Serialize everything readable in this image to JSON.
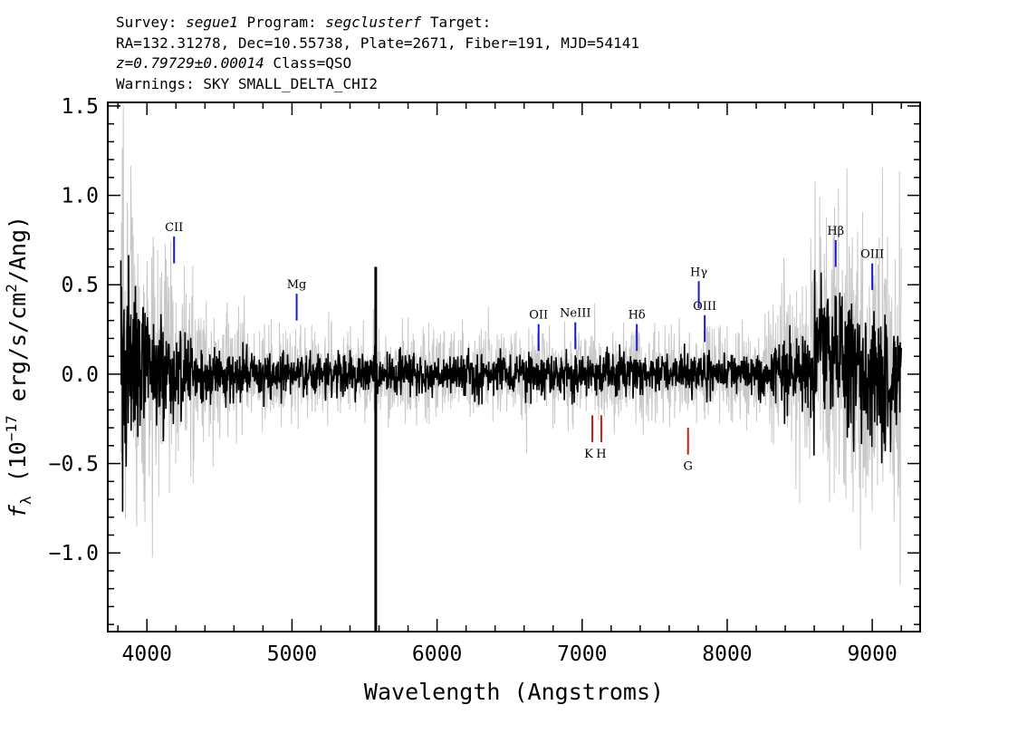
{
  "header": {
    "survey_label": "Survey:",
    "survey": "segue1",
    "program_label": "Program:",
    "program": "segclusterf",
    "target_label": "Target:",
    "line2": "RA=132.31278, Dec=10.55738, Plate=2671, Fiber=191, MJD=54141",
    "redshift": "z=0.79729±0.00014",
    "class_text": "Class=QSO",
    "warnings": "Warnings: SKY SMALL_DELTA_CHI2"
  },
  "chart_data": {
    "type": "line",
    "title": "",
    "xlabel": "Wavelength (Angstroms)",
    "ylabel": "f_λ (10^-17 erg/s/cm^2/Ang)",
    "xlim": [
      3730,
      9330
    ],
    "ylim": [
      -1.44,
      1.52
    ],
    "x_ticks": [
      4000,
      5000,
      6000,
      7000,
      8000,
      9000
    ],
    "x_tick_labels": [
      "4000",
      "5000",
      "6000",
      "7000",
      "8000",
      "9000"
    ],
    "y_ticks": [
      -1.0,
      -0.5,
      0.0,
      0.5,
      1.0,
      1.5
    ],
    "y_tick_labels": [
      "−1.0",
      "−0.5",
      "0.0",
      "0.5",
      "1.0",
      "1.5"
    ],
    "grid": false,
    "series": [
      {
        "color": "#c8c8c8",
        "x_range": [
          3820,
          9200
        ],
        "description_points": [
          [
            3820,
            0.0
          ],
          [
            4000,
            0.0
          ],
          [
            5000,
            0.0
          ],
          [
            5577,
            0.0
          ],
          [
            7000,
            0.0
          ],
          [
            8000,
            0.0
          ],
          [
            9200,
            0.0
          ]
        ]
      },
      {
        "color": "#000000",
        "x_range": [
          3820,
          9200
        ],
        "description_points": [
          [
            3820,
            0.0
          ],
          [
            3900,
            0.2
          ],
          [
            4000,
            0.05
          ],
          [
            5000,
            0.0
          ],
          [
            5577,
            -1.44
          ],
          [
            6000,
            0.0
          ],
          [
            7000,
            0.0
          ],
          [
            8000,
            0.0
          ],
          [
            8700,
            0.2
          ],
          [
            9200,
            0.0
          ]
        ]
      }
    ],
    "emission_lines": [
      {
        "name": "CII",
        "x": 4187,
        "color": "#1a1acc"
      },
      {
        "name": "Mg",
        "x": 5032,
        "color": "#1a1acc"
      },
      {
        "name": "OII",
        "x": 6700,
        "color": "#1a1acc"
      },
      {
        "name": "NeIII",
        "x": 6953,
        "color": "#1a1acc"
      },
      {
        "name": "Hδ",
        "x": 7377,
        "color": "#1a1acc"
      },
      {
        "name": "Hγ",
        "x": 7804,
        "color": "#1a1acc"
      },
      {
        "name": "OIII",
        "x": 7845,
        "color": "#1a1acc"
      },
      {
        "name": "Hβ",
        "x": 8748,
        "color": "#1a1acc"
      },
      {
        "name": "OIII",
        "x": 9000,
        "color": "#1a1acc"
      }
    ],
    "absorption_lines": [
      {
        "name": "K",
        "x": 7070,
        "color": "#cc1a1a"
      },
      {
        "name": "H",
        "x": 7132,
        "color": "#cc1a1a"
      },
      {
        "name": "G",
        "x": 7730,
        "color": "#cc1a1a"
      }
    ]
  }
}
